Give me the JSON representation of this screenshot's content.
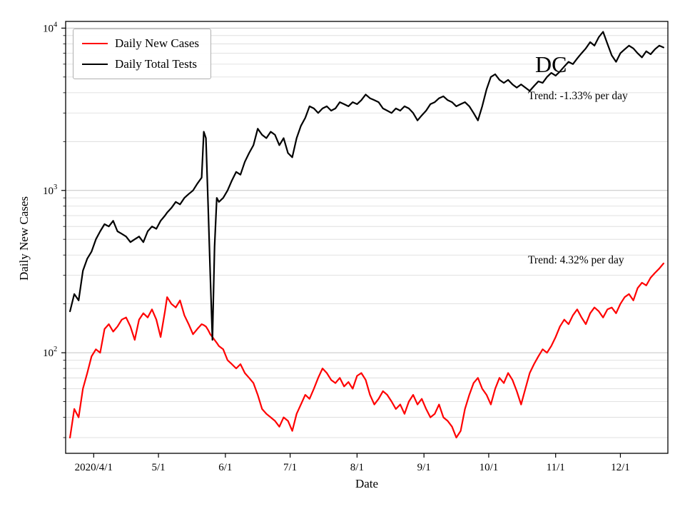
{
  "annotations": {
    "state": "DC",
    "trend_tests": "Trend: -1.33% per day",
    "trend_cases": "Trend: 4.32% per day"
  },
  "chart_data": {
    "type": "line",
    "title": "",
    "xlabel": "Date",
    "ylabel": "Daily New Cases",
    "y_scale": "log",
    "grid": true,
    "legend_position": "upper left",
    "ylim": [
      24,
      11000
    ],
    "xlim": [
      -2,
      277
    ],
    "x_unit": "days since 2020-03-21",
    "x_ticks": [
      {
        "day": 11,
        "label": "2020/4/1"
      },
      {
        "day": 41,
        "label": "5/1"
      },
      {
        "day": 72,
        "label": "6/1"
      },
      {
        "day": 102,
        "label": "7/1"
      },
      {
        "day": 133,
        "label": "8/1"
      },
      {
        "day": 164,
        "label": "9/1"
      },
      {
        "day": 194,
        "label": "10/1"
      },
      {
        "day": 225,
        "label": "11/1"
      },
      {
        "day": 255,
        "label": "12/1"
      }
    ],
    "y_ticks": [
      {
        "value": 100,
        "base": "10",
        "exp": "2"
      },
      {
        "value": 1000,
        "base": "10",
        "exp": "3"
      },
      {
        "value": 10000,
        "base": "10",
        "exp": "4"
      }
    ],
    "x": [
      0,
      2,
      4,
      6,
      8,
      10,
      12,
      14,
      16,
      18,
      20,
      22,
      24,
      26,
      28,
      30,
      32,
      34,
      36,
      38,
      40,
      42,
      44,
      45,
      47,
      49,
      51,
      53,
      55,
      57,
      59,
      61,
      62,
      63,
      64,
      65,
      66,
      67,
      68,
      69,
      71,
      73,
      75,
      77,
      79,
      81,
      83,
      85,
      87,
      89,
      91,
      93,
      95,
      97,
      99,
      101,
      103,
      105,
      107,
      109,
      111,
      113,
      115,
      117,
      119,
      121,
      123,
      125,
      127,
      129,
      131,
      133,
      135,
      137,
      139,
      141,
      143,
      145,
      147,
      149,
      151,
      153,
      155,
      157,
      159,
      161,
      163,
      165,
      167,
      169,
      171,
      173,
      175,
      177,
      179,
      181,
      183,
      185,
      187,
      189,
      191,
      193,
      195,
      197,
      199,
      201,
      203,
      205,
      207,
      209,
      211,
      213,
      215,
      217,
      219,
      221,
      223,
      225,
      227,
      229,
      231,
      233,
      235,
      237,
      239,
      241,
      243,
      245,
      247,
      249,
      251,
      253,
      255,
      257,
      259,
      261,
      263,
      265,
      267,
      269,
      271,
      273,
      275
    ],
    "series": [
      {
        "name": "Daily New Cases",
        "color": "#ff0000",
        "values": [
          30,
          45,
          40,
          60,
          75,
          95,
          105,
          100,
          140,
          150,
          135,
          145,
          160,
          165,
          145,
          120,
          160,
          175,
          165,
          185,
          160,
          125,
          180,
          220,
          200,
          190,
          210,
          170,
          150,
          130,
          140,
          150,
          148,
          145,
          138,
          130,
          125,
          120,
          115,
          110,
          105,
          90,
          85,
          80,
          85,
          75,
          70,
          65,
          55,
          45,
          42,
          40,
          38,
          35,
          40,
          38,
          33,
          42,
          48,
          55,
          52,
          60,
          70,
          80,
          75,
          68,
          65,
          70,
          62,
          66,
          60,
          72,
          75,
          68,
          55,
          48,
          52,
          58,
          55,
          50,
          45,
          48,
          42,
          50,
          55,
          48,
          52,
          45,
          40,
          42,
          48,
          40,
          38,
          35,
          30,
          33,
          45,
          55,
          65,
          70,
          60,
          55,
          48,
          60,
          70,
          65,
          75,
          68,
          58,
          48,
          60,
          75,
          85,
          95,
          105,
          100,
          110,
          125,
          145,
          160,
          150,
          170,
          185,
          165,
          150,
          175,
          190,
          180,
          165,
          185,
          190,
          175,
          200,
          220,
          230,
          210,
          250,
          270,
          260,
          290,
          310,
          330,
          355
        ]
      },
      {
        "name": "Daily Total Tests",
        "color": "#000000",
        "values": [
          180,
          230,
          210,
          320,
          380,
          420,
          500,
          560,
          620,
          600,
          650,
          560,
          540,
          520,
          480,
          500,
          520,
          480,
          560,
          600,
          580,
          650,
          700,
          730,
          780,
          850,
          820,
          900,
          950,
          1000,
          1100,
          1200,
          2300,
          2100,
          800,
          300,
          120,
          450,
          900,
          850,
          900,
          1000,
          1150,
          1300,
          1250,
          1500,
          1700,
          1900,
          2400,
          2200,
          2100,
          2300,
          2200,
          1900,
          2100,
          1700,
          1600,
          2100,
          2500,
          2800,
          3300,
          3200,
          3000,
          3200,
          3300,
          3100,
          3200,
          3500,
          3400,
          3300,
          3500,
          3400,
          3600,
          3900,
          3700,
          3600,
          3500,
          3200,
          3100,
          3000,
          3200,
          3100,
          3300,
          3200,
          3000,
          2700,
          2900,
          3100,
          3400,
          3500,
          3700,
          3800,
          3600,
          3500,
          3300,
          3400,
          3500,
          3300,
          3000,
          2700,
          3300,
          4200,
          5000,
          5200,
          4800,
          4600,
          4800,
          4500,
          4300,
          4500,
          4300,
          4100,
          4400,
          4700,
          4600,
          5000,
          5300,
          5100,
          5400,
          5800,
          6200,
          6000,
          6500,
          7000,
          7500,
          8200,
          7800,
          8800,
          9500,
          8000,
          6800,
          6200,
          7000,
          7400,
          7800,
          7500,
          7000,
          6600,
          7200,
          6900,
          7400,
          7800,
          7600
        ]
      }
    ]
  }
}
